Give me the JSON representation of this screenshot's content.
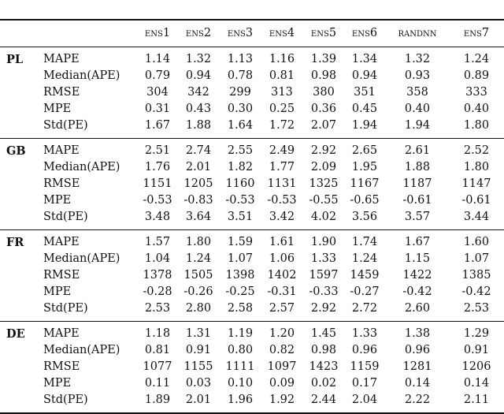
{
  "columns": [
    "ens1",
    "ens2",
    "ens3",
    "ens4",
    "ens5",
    "ens6",
    "randNN",
    "ens7"
  ],
  "groups": [
    {
      "name": "PL",
      "rows": [
        {
          "metric": "MAPE",
          "values": [
            "1.14",
            "1.32",
            "1.13",
            "1.16",
            "1.39",
            "1.34",
            "1.32",
            "1.24"
          ]
        },
        {
          "metric": "Median(APE)",
          "values": [
            "0.79",
            "0.94",
            "0.78",
            "0.81",
            "0.98",
            "0.94",
            "0.93",
            "0.89"
          ]
        },
        {
          "metric": "RMSE",
          "values": [
            "304",
            "342",
            "299",
            "313",
            "380",
            "351",
            "358",
            "333"
          ]
        },
        {
          "metric": "MPE",
          "values": [
            "0.31",
            "0.43",
            "0.30",
            "0.25",
            "0.36",
            "0.45",
            "0.40",
            "0.40"
          ]
        },
        {
          "metric": "Std(PE)",
          "values": [
            "1.67",
            "1.88",
            "1.64",
            "1.72",
            "2.07",
            "1.94",
            "1.94",
            "1.80"
          ]
        }
      ]
    },
    {
      "name": "GB",
      "rows": [
        {
          "metric": "MAPE",
          "values": [
            "2.51",
            "2.74",
            "2.55",
            "2.49",
            "2.92",
            "2.65",
            "2.61",
            "2.52"
          ]
        },
        {
          "metric": "Median(APE)",
          "values": [
            "1.76",
            "2.01",
            "1.82",
            "1.77",
            "2.09",
            "1.95",
            "1.88",
            "1.80"
          ]
        },
        {
          "metric": "RMSE",
          "values": [
            "1151",
            "1205",
            "1160",
            "1131",
            "1325",
            "1167",
            "1187",
            "1147"
          ]
        },
        {
          "metric": "MPE",
          "values": [
            "-0.53",
            "-0.83",
            "-0.53",
            "-0.53",
            "-0.55",
            "-0.65",
            "-0.61",
            "-0.61"
          ]
        },
        {
          "metric": "Std(PE)",
          "values": [
            "3.48",
            "3.64",
            "3.51",
            "3.42",
            "4.02",
            "3.56",
            "3.57",
            "3.44"
          ]
        }
      ]
    },
    {
      "name": "FR",
      "rows": [
        {
          "metric": "MAPE",
          "values": [
            "1.57",
            "1.80",
            "1.59",
            "1.61",
            "1.90",
            "1.74",
            "1.67",
            "1.60"
          ]
        },
        {
          "metric": "Median(APE)",
          "values": [
            "1.04",
            "1.24",
            "1.07",
            "1.06",
            "1.33",
            "1.24",
            "1.15",
            "1.07"
          ]
        },
        {
          "metric": "RMSE",
          "values": [
            "1378",
            "1505",
            "1398",
            "1402",
            "1597",
            "1459",
            "1422",
            "1385"
          ]
        },
        {
          "metric": "MPE",
          "values": [
            "-0.28",
            "-0.26",
            "-0.25",
            "-0.31",
            "-0.33",
            "-0.27",
            "-0.42",
            "-0.42"
          ]
        },
        {
          "metric": "Std(PE)",
          "values": [
            "2.53",
            "2.80",
            "2.58",
            "2.57",
            "2.92",
            "2.72",
            "2.60",
            "2.53"
          ]
        }
      ]
    },
    {
      "name": "DE",
      "rows": [
        {
          "metric": "MAPE",
          "values": [
            "1.18",
            "1.31",
            "1.19",
            "1.20",
            "1.45",
            "1.33",
            "1.38",
            "1.29"
          ]
        },
        {
          "metric": "Median(APE)",
          "values": [
            "0.81",
            "0.91",
            "0.80",
            "0.82",
            "0.98",
            "0.96",
            "0.96",
            "0.91"
          ]
        },
        {
          "metric": "RMSE",
          "values": [
            "1077",
            "1155",
            "1111",
            "1097",
            "1423",
            "1159",
            "1281",
            "1206"
          ]
        },
        {
          "metric": "MPE",
          "values": [
            "0.11",
            "0.03",
            "0.10",
            "0.09",
            "0.02",
            "0.17",
            "0.14",
            "0.14"
          ]
        },
        {
          "metric": "Std(PE)",
          "values": [
            "1.89",
            "2.01",
            "1.96",
            "1.92",
            "2.44",
            "2.04",
            "2.22",
            "2.11"
          ]
        }
      ]
    }
  ]
}
